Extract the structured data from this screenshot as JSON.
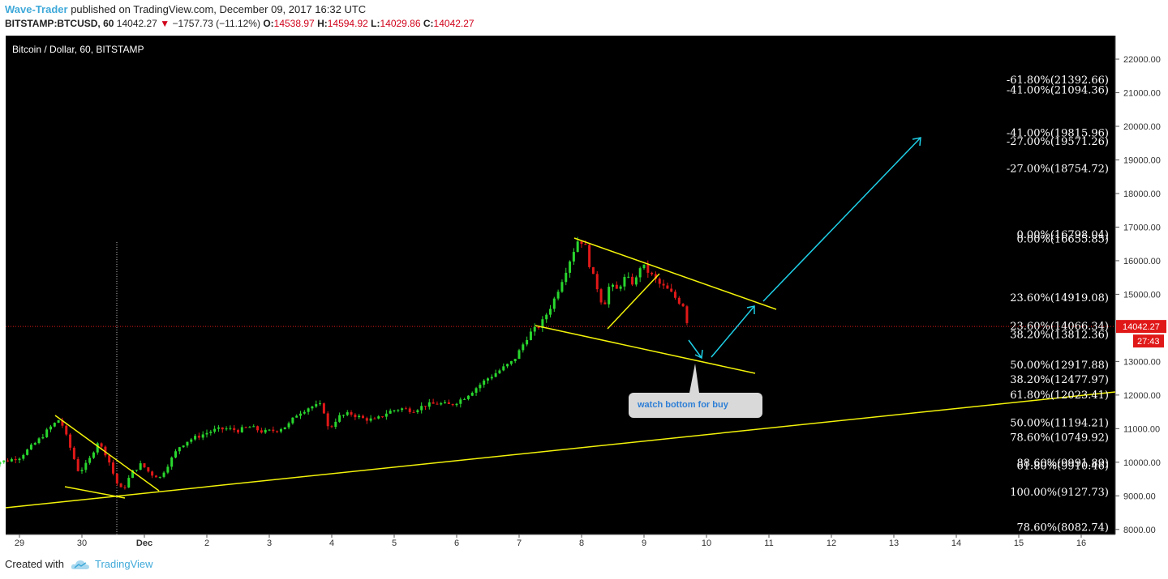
{
  "header": {
    "author": "Wave-Trader",
    "published": "published on TradingView.com, December 09, 2017 16:32 UTC",
    "symbol": "BITSTAMP:BTCUSD, 60",
    "last": "14042.27",
    "change": "−1757.73 (−11.12%)",
    "open_label": "O:",
    "open": "14538.97",
    "high_label": "H:",
    "high": "14594.92",
    "low_label": "L:",
    "low": "14029.86",
    "close_label": "C:",
    "close": "14042.27"
  },
  "footer": {
    "created_with": "Created with",
    "brand": "TradingView"
  },
  "colors": {
    "up": "#29d62e",
    "down": "#e01818",
    "trend": "#f2f20a",
    "arrow": "#1fd0e8",
    "price_tag": "#e01818"
  },
  "chart_data": {
    "type": "candlestick",
    "title": "Bitcoin / Dollar, 60, BITSTAMP",
    "x_ticks": [
      "29",
      "30",
      "Dec",
      "2",
      "3",
      "4",
      "5",
      "6",
      "7",
      "8",
      "9",
      "10",
      "11",
      "12",
      "13",
      "14",
      "15",
      "16"
    ],
    "y_ticks": [
      "22000.00",
      "21000.00",
      "20000.00",
      "19000.00",
      "18000.00",
      "17000.00",
      "16000.00",
      "15000.00",
      "13000.00",
      "12000.00",
      "11000.00",
      "10000.00",
      "9000.00",
      "8000.00"
    ],
    "ylim": [
      7850,
      22700
    ],
    "last_price": 14042.27,
    "price_tag": "14042.27",
    "countdown": "27:43",
    "annotation": "watch bottom for buy",
    "fib_labels": [
      {
        "text": "-61.80%(21392.66)",
        "value": 21392.66
      },
      {
        "text": "-41.00%(21094.36)",
        "value": 21094.36
      },
      {
        "text": "-41.00%(19815.96)",
        "value": 19815.96
      },
      {
        "text": "-27.00%(19571.26)",
        "value": 19571.26
      },
      {
        "text": "-27.00%(18754.72)",
        "value": 18754.72
      },
      {
        "text": "0.00%(16798.04)",
        "value": 16798.04
      },
      {
        "text": "0.00%(16655.85)",
        "value": 16655.85
      },
      {
        "text": "23.60%(14919.08)",
        "value": 14919.08
      },
      {
        "text": "23.60%(14066.34)",
        "value": 14066.34
      },
      {
        "text": "38.20%(13812.36)",
        "value": 13812.36
      },
      {
        "text": "50.00%(12917.88)",
        "value": 12917.88
      },
      {
        "text": "38.20%(12477.97)",
        "value": 12477.97
      },
      {
        "text": "61.80%(12023.41)",
        "value": 12023.41
      },
      {
        "text": "50.00%(11194.21)",
        "value": 11194.21
      },
      {
        "text": "78.60%(10749.92)",
        "value": 10749.92
      },
      {
        "text": "88.60%(9991.89)",
        "value": 9991.89
      },
      {
        "text": "61.80%(9910.46)",
        "value": 9910.46
      },
      {
        "text": "100.00%(9127.73)",
        "value": 9127.73
      },
      {
        "text": "78.60%(8082.74)",
        "value": 8082.74
      }
    ],
    "price_path": [
      [
        28.5,
        9950
      ],
      [
        28.8,
        10050
      ],
      [
        29.0,
        10150
      ],
      [
        29.3,
        10650
      ],
      [
        29.5,
        11050
      ],
      [
        29.65,
        11300
      ],
      [
        29.8,
        10500
      ],
      [
        29.95,
        9700
      ],
      [
        30.1,
        10000
      ],
      [
        30.25,
        10600
      ],
      [
        30.4,
        10200
      ],
      [
        30.55,
        9400
      ],
      [
        30.65,
        9150
      ],
      [
        30.8,
        9700
      ],
      [
        30.95,
        9950
      ],
      [
        31.1,
        9650
      ],
      [
        31.25,
        9550
      ],
      [
        31.4,
        10000
      ],
      [
        31.55,
        10450
      ],
      [
        31.7,
        10650
      ],
      [
        31.9,
        10800
      ],
      [
        32.1,
        10950
      ],
      [
        32.3,
        11000
      ],
      [
        32.5,
        10950
      ],
      [
        32.7,
        11050
      ],
      [
        32.9,
        10900
      ],
      [
        33.1,
        10950
      ],
      [
        33.3,
        11100
      ],
      [
        33.45,
        11450
      ],
      [
        33.65,
        11650
      ],
      [
        33.85,
        11700
      ],
      [
        33.95,
        10950
      ],
      [
        34.1,
        11350
      ],
      [
        34.3,
        11450
      ],
      [
        34.5,
        11300
      ],
      [
        34.7,
        11250
      ],
      [
        34.9,
        11500
      ],
      [
        35.1,
        11600
      ],
      [
        35.3,
        11550
      ],
      [
        35.5,
        11700
      ],
      [
        35.7,
        11750
      ],
      [
        35.9,
        11700
      ],
      [
        36.1,
        11900
      ],
      [
        36.3,
        12200
      ],
      [
        36.5,
        12500
      ],
      [
        36.7,
        12750
      ],
      [
        36.9,
        13000
      ],
      [
        37.0,
        13300
      ],
      [
        37.15,
        13800
      ],
      [
        37.35,
        14100
      ],
      [
        37.55,
        14800
      ],
      [
        37.7,
        15500
      ],
      [
        37.85,
        16200
      ],
      [
        37.95,
        16650
      ],
      [
        38.05,
        16500
      ],
      [
        38.15,
        15700
      ],
      [
        38.25,
        15200
      ],
      [
        38.35,
        14600
      ],
      [
        38.45,
        15300
      ],
      [
        38.55,
        15100
      ],
      [
        38.7,
        15500
      ],
      [
        38.85,
        15300
      ],
      [
        38.95,
        15900
      ],
      [
        39.1,
        15600
      ],
      [
        39.25,
        15300
      ],
      [
        39.4,
        15100
      ],
      [
        39.55,
        14800
      ],
      [
        39.65,
        14650
      ],
      [
        39.7,
        14050
      ]
    ]
  }
}
